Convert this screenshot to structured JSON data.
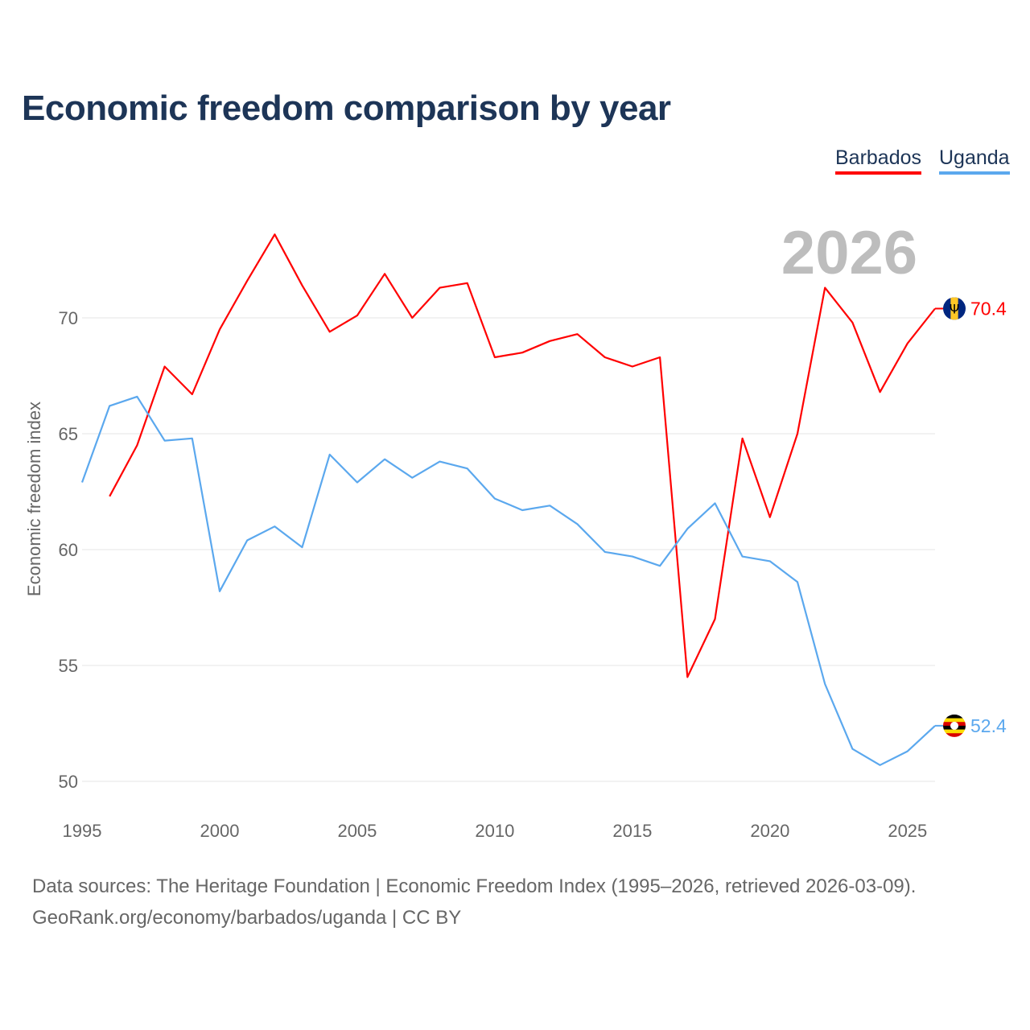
{
  "chart_data": {
    "type": "line",
    "title": "Economic freedom comparison by year",
    "ylabel": "Economic freedom index",
    "xlabel": "",
    "ylim": [
      50,
      74
    ],
    "xlim": [
      1995,
      2026
    ],
    "yticks": [
      "50",
      "55",
      "60",
      "65",
      "70"
    ],
    "xticks": [
      "1995",
      "2000",
      "2005",
      "2010",
      "2015",
      "2020",
      "2025"
    ],
    "year_watermark": "2026",
    "legend_placement": "top-right",
    "grid": true,
    "series": [
      {
        "name": "Barbados",
        "color": "#ff0000",
        "end_label": "70.4",
        "x": [
          1996,
          1997,
          1998,
          1999,
          2000,
          2001,
          2002,
          2003,
          2004,
          2005,
          2006,
          2007,
          2008,
          2009,
          2010,
          2011,
          2012,
          2013,
          2014,
          2015,
          2016,
          2017,
          2018,
          2019,
          2020,
          2021,
          2022,
          2023,
          2024,
          2025,
          2026
        ],
        "values": [
          62.3,
          64.5,
          67.9,
          66.7,
          69.5,
          71.6,
          73.6,
          71.4,
          69.4,
          70.1,
          71.9,
          70.0,
          71.3,
          71.5,
          68.3,
          68.5,
          69.0,
          69.3,
          68.3,
          67.9,
          68.3,
          54.5,
          57.0,
          64.8,
          61.4,
          65.0,
          71.3,
          69.8,
          66.8,
          68.9,
          70.4
        ]
      },
      {
        "name": "Uganda",
        "color": "#5ba8ee",
        "end_label": "52.4",
        "x": [
          1995,
          1996,
          1997,
          1998,
          1999,
          2000,
          2001,
          2002,
          2003,
          2004,
          2005,
          2006,
          2007,
          2008,
          2009,
          2010,
          2011,
          2012,
          2013,
          2014,
          2015,
          2016,
          2017,
          2018,
          2019,
          2020,
          2021,
          2022,
          2023,
          2024,
          2025,
          2026
        ],
        "values": [
          62.9,
          66.2,
          66.6,
          64.7,
          64.8,
          58.2,
          60.4,
          61.0,
          60.1,
          64.1,
          62.9,
          63.9,
          63.1,
          63.8,
          63.5,
          62.2,
          61.7,
          61.9,
          61.1,
          59.9,
          59.7,
          59.3,
          60.9,
          62.0,
          59.7,
          59.5,
          58.6,
          54.2,
          51.4,
          50.7,
          51.3,
          52.4
        ]
      }
    ]
  },
  "footer": {
    "sources": "Data sources: The Heritage Foundation | Economic Freedom Index (1995–2026, retrieved 2026-03-09).",
    "credit": "GeoRank.org/economy/barbados/uganda | CC BY"
  }
}
